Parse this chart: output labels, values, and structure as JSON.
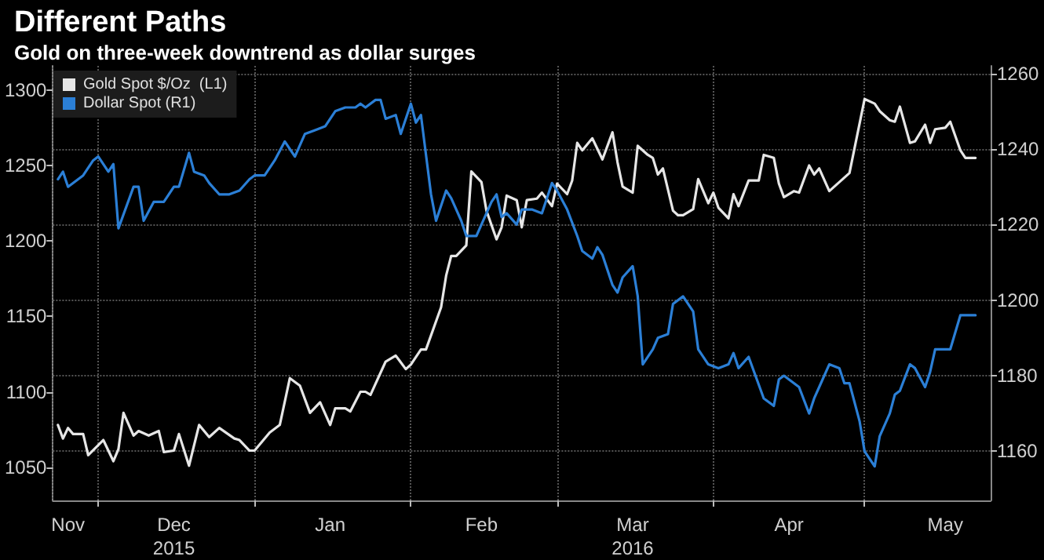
{
  "chart_data": {
    "type": "line",
    "title": "Different Paths",
    "subtitle": "Gold on three-week downtrend as dollar surges",
    "xlim": [
      "2015-11-22",
      "2016-05-26"
    ],
    "xticks": [
      {
        "value": "2015-11-25",
        "label": "Nov"
      },
      {
        "value": "2015-12-01",
        "label": null
      },
      {
        "value": "2015-12-16",
        "label": "Dec\n2015"
      },
      {
        "value": "2016-01-01",
        "label": null
      },
      {
        "value": "2016-01-16",
        "label": "Jan"
      },
      {
        "value": "2016-02-01",
        "label": null
      },
      {
        "value": "2016-02-15",
        "label": "Feb"
      },
      {
        "value": "2016-03-01",
        "label": null
      },
      {
        "value": "2016-03-16",
        "label": "Mar\n2016"
      },
      {
        "value": "2016-04-01",
        "label": null
      },
      {
        "value": "2016-04-16",
        "label": "Apr"
      },
      {
        "value": "2016-05-01",
        "label": null
      },
      {
        "value": "2016-05-17",
        "label": "May"
      }
    ],
    "ylim": [
      1028,
      1316
    ],
    "yticks": [
      1050,
      1100,
      1150,
      1200,
      1250,
      1300
    ],
    "y2lim": [
      1147,
      1262
    ],
    "y2ticks": [
      1160,
      1180,
      1200,
      1220,
      1240,
      1260
    ],
    "grid": true,
    "legend": "top left",
    "marker": "none",
    "line_style": "solid",
    "series": [
      {
        "name": "Gold Spot $/Oz  (L1)",
        "color": "#e6e6e6",
        "axis": "y",
        "x": [
          "2015-11-23",
          "2015-11-24",
          "2015-11-25",
          "2015-11-26",
          "2015-11-28",
          "2015-11-29",
          "2015-12-02",
          "2015-12-04",
          "2015-12-05",
          "2015-12-06",
          "2015-12-08",
          "2015-12-09",
          "2015-12-11",
          "2015-12-13",
          "2015-12-14",
          "2015-12-16",
          "2015-12-17",
          "2015-12-19",
          "2015-12-21",
          "2015-12-23",
          "2015-12-25",
          "2015-12-28",
          "2015-12-29",
          "2015-12-31",
          "2016-01-01",
          "2016-01-04",
          "2016-01-06",
          "2016-01-08",
          "2016-01-10",
          "2016-01-12",
          "2016-01-14",
          "2016-01-16",
          "2016-01-17",
          "2016-01-19",
          "2016-01-20",
          "2016-01-22",
          "2016-01-23",
          "2016-01-24",
          "2016-01-27",
          "2016-01-29",
          "2016-01-31",
          "2016-02-01",
          "2016-02-03",
          "2016-02-04",
          "2016-02-07",
          "2016-02-08",
          "2016-02-09",
          "2016-02-10",
          "2016-02-12",
          "2016-02-13",
          "2016-02-15",
          "2016-02-16",
          "2016-02-18",
          "2016-02-19",
          "2016-02-20",
          "2016-02-22",
          "2016-02-23",
          "2016-02-24",
          "2016-02-26",
          "2016-02-27",
          "2016-02-29",
          "2016-03-01",
          "2016-03-03",
          "2016-03-04",
          "2016-03-05",
          "2016-03-06",
          "2016-03-08",
          "2016-03-09",
          "2016-03-10",
          "2016-03-12",
          "2016-03-13",
          "2016-03-14",
          "2016-03-16",
          "2016-03-17",
          "2016-03-19",
          "2016-03-20",
          "2016-03-21",
          "2016-03-22",
          "2016-03-24",
          "2016-03-25",
          "2016-03-26",
          "2016-03-28",
          "2016-03-29",
          "2016-03-31",
          "2016-04-01",
          "2016-04-02",
          "2016-04-04",
          "2016-04-05",
          "2016-04-06",
          "2016-04-08",
          "2016-04-10",
          "2016-04-11",
          "2016-04-13",
          "2016-04-14",
          "2016-04-15",
          "2016-04-17",
          "2016-04-18",
          "2016-04-20",
          "2016-04-21",
          "2016-04-22",
          "2016-04-24",
          "2016-04-27",
          "2016-04-28",
          "2016-05-01",
          "2016-05-03",
          "2016-05-04",
          "2016-05-06",
          "2016-05-07",
          "2016-05-08",
          "2016-05-10",
          "2016-05-11",
          "2016-05-13",
          "2016-05-14",
          "2016-05-15",
          "2016-05-17",
          "2016-05-18",
          "2016-05-20",
          "2016-05-21",
          "2016-05-23"
        ],
        "values": [
          1078,
          1069,
          1076,
          1072,
          1072,
          1058,
          1068,
          1054,
          1062,
          1086,
          1071,
          1074,
          1071,
          1074,
          1060,
          1061,
          1072,
          1051,
          1078,
          1070,
          1076,
          1069,
          1068,
          1061,
          1061,
          1073,
          1078,
          1109,
          1104,
          1086,
          1093,
          1078,
          1089,
          1089,
          1087,
          1100,
          1100,
          1098,
          1120,
          1124,
          1115,
          1118,
          1128,
          1128,
          1156,
          1177,
          1190,
          1190,
          1197,
          1246,
          1239,
          1220,
          1201,
          1209,
          1230,
          1227,
          1209,
          1227,
          1228,
          1232,
          1223,
          1238,
          1231,
          1240,
          1265,
          1260,
          1268,
          1261,
          1254,
          1272,
          1252,
          1236,
          1232,
          1263,
          1257,
          1255,
          1244,
          1248,
          1220,
          1217,
          1217,
          1221,
          1241,
          1225,
          1232,
          1222,
          1215,
          1231,
          1223,
          1240,
          1240,
          1257,
          1255,
          1238,
          1229,
          1233,
          1232,
          1250,
          1244,
          1248,
          1233,
          1242,
          1245,
          1294,
          1291,
          1286,
          1280,
          1279,
          1289,
          1265,
          1266,
          1277,
          1265,
          1274,
          1275,
          1279,
          1260,
          1255,
          1255
        ]
      },
      {
        "name": "Dollar Spot (R1)",
        "color": "#2b7fd6",
        "axis": "y2",
        "x": [
          "2015-11-23",
          "2015-11-24",
          "2015-11-25",
          "2015-11-28",
          "2015-11-30",
          "2015-12-01",
          "2015-12-03",
          "2015-12-04",
          "2015-12-05",
          "2015-12-08",
          "2015-12-09",
          "2015-12-10",
          "2015-12-12",
          "2015-12-14",
          "2015-12-16",
          "2015-12-17",
          "2015-12-19",
          "2015-12-20",
          "2015-12-22",
          "2015-12-23",
          "2015-12-25",
          "2015-12-27",
          "2015-12-29",
          "2015-12-31",
          "2016-01-01",
          "2016-01-03",
          "2016-01-05",
          "2016-01-07",
          "2016-01-09",
          "2016-01-11",
          "2016-01-13",
          "2016-01-15",
          "2016-01-17",
          "2016-01-19",
          "2016-01-21",
          "2016-01-22",
          "2016-01-23",
          "2016-01-25",
          "2016-01-26",
          "2016-01-27",
          "2016-01-29",
          "2016-01-30",
          "2016-02-01",
          "2016-02-02",
          "2016-02-03",
          "2016-02-05",
          "2016-02-06",
          "2016-02-08",
          "2016-02-09",
          "2016-02-11",
          "2016-02-12",
          "2016-02-14",
          "2016-02-15",
          "2016-02-17",
          "2016-02-18",
          "2016-02-19",
          "2016-02-20",
          "2016-02-22",
          "2016-02-23",
          "2016-02-25",
          "2016-02-27",
          "2016-02-29",
          "2016-03-01",
          "2016-03-03",
          "2016-03-05",
          "2016-03-06",
          "2016-03-08",
          "2016-03-09",
          "2016-03-10",
          "2016-03-12",
          "2016-03-13",
          "2016-03-14",
          "2016-03-16",
          "2016-03-17",
          "2016-03-18",
          "2016-03-20",
          "2016-03-21",
          "2016-03-23",
          "2016-03-24",
          "2016-03-26",
          "2016-03-28",
          "2016-03-29",
          "2016-03-31",
          "2016-04-02",
          "2016-04-04",
          "2016-04-05",
          "2016-04-06",
          "2016-04-08",
          "2016-04-11",
          "2016-04-13",
          "2016-04-14",
          "2016-04-15",
          "2016-04-18",
          "2016-04-20",
          "2016-04-21",
          "2016-04-22",
          "2016-04-24",
          "2016-04-26",
          "2016-04-27",
          "2016-04-28",
          "2016-04-30",
          "2016-05-01",
          "2016-05-03",
          "2016-05-04",
          "2016-05-06",
          "2016-05-07",
          "2016-05-08",
          "2016-05-10",
          "2016-05-11",
          "2016-05-13",
          "2016-05-14",
          "2016-05-15",
          "2016-05-18",
          "2016-05-20",
          "2016-05-21",
          "2016-05-23"
        ],
        "values": [
          1232,
          1234,
          1230,
          1233,
          1237,
          1238,
          1234,
          1236,
          1219,
          1230,
          1230,
          1221,
          1226,
          1226,
          1230,
          1230,
          1239,
          1234,
          1233,
          1231,
          1228,
          1228,
          1229,
          1232,
          1233,
          1233,
          1237,
          1242,
          1238,
          1244,
          1245,
          1246,
          1250,
          1251,
          1251,
          1252,
          1251,
          1253,
          1253,
          1248,
          1249,
          1244,
          1252,
          1247,
          1249,
          1228,
          1221,
          1229,
          1227,
          1221,
          1217,
          1217,
          1220,
          1226,
          1228,
          1222,
          1223,
          1220,
          1224,
          1224,
          1223,
          1231,
          1229,
          1224,
          1217,
          1213,
          1211,
          1214,
          1212,
          1204,
          1202,
          1206,
          1209,
          1201,
          1183,
          1187,
          1190,
          1191,
          1199,
          1201,
          1197,
          1187,
          1183,
          1182,
          1183,
          1186,
          1182,
          1185,
          1174,
          1172,
          1179,
          1180,
          1177,
          1170,
          1174,
          1177,
          1183,
          1182,
          1178,
          1178,
          1168,
          1160,
          1156,
          1164,
          1170,
          1175,
          1176,
          1183,
          1182,
          1177,
          1181,
          1187,
          1187,
          1196,
          1196,
          1196
        ]
      }
    ]
  }
}
